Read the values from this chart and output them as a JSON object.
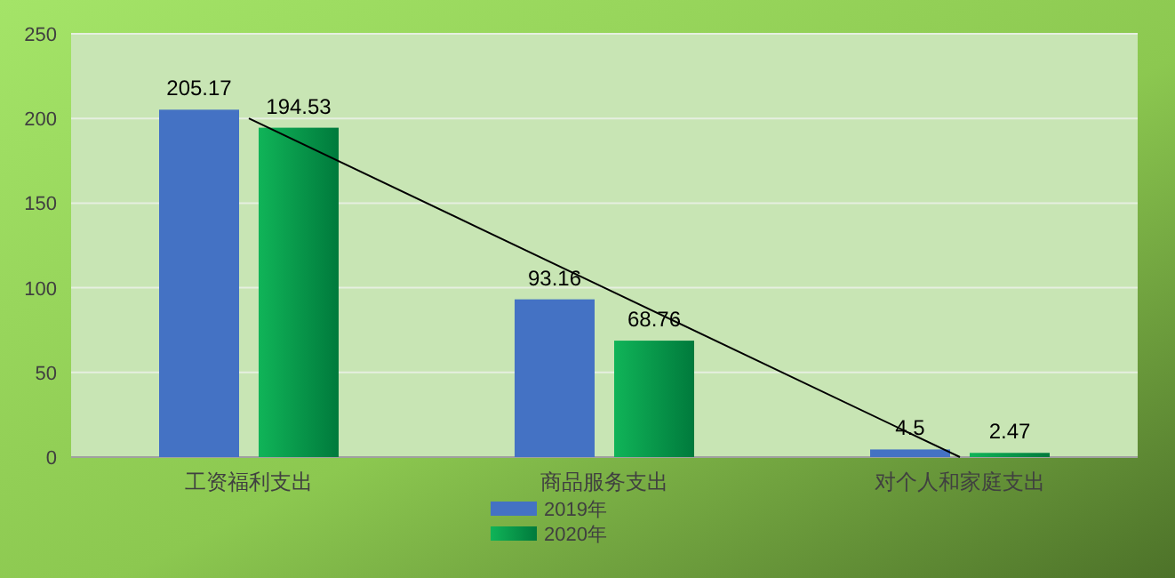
{
  "chart_data": {
    "type": "bar",
    "categories": [
      "工资福利支出",
      "商品服务支出",
      "对个人和家庭支出"
    ],
    "series": [
      {
        "name": "2019年",
        "color": "#4472c4",
        "values": [
          205.17,
          93.16,
          4.5
        ],
        "value_labels": [
          "205.17",
          "93.16",
          "4.5"
        ]
      },
      {
        "name": "2020年",
        "color": "#10b458",
        "values": [
          194.53,
          68.76,
          2.47
        ],
        "value_labels": [
          "194.53",
          "68.76",
          "2.47"
        ]
      },
      {
        "type": "line",
        "color": "#000000",
        "values": [
          200,
          100,
          0
        ]
      }
    ],
    "ylim": [
      0,
      250
    ],
    "yticks": [
      0,
      50,
      100,
      150,
      200,
      250
    ],
    "grid": "y",
    "legend": "bottom"
  }
}
